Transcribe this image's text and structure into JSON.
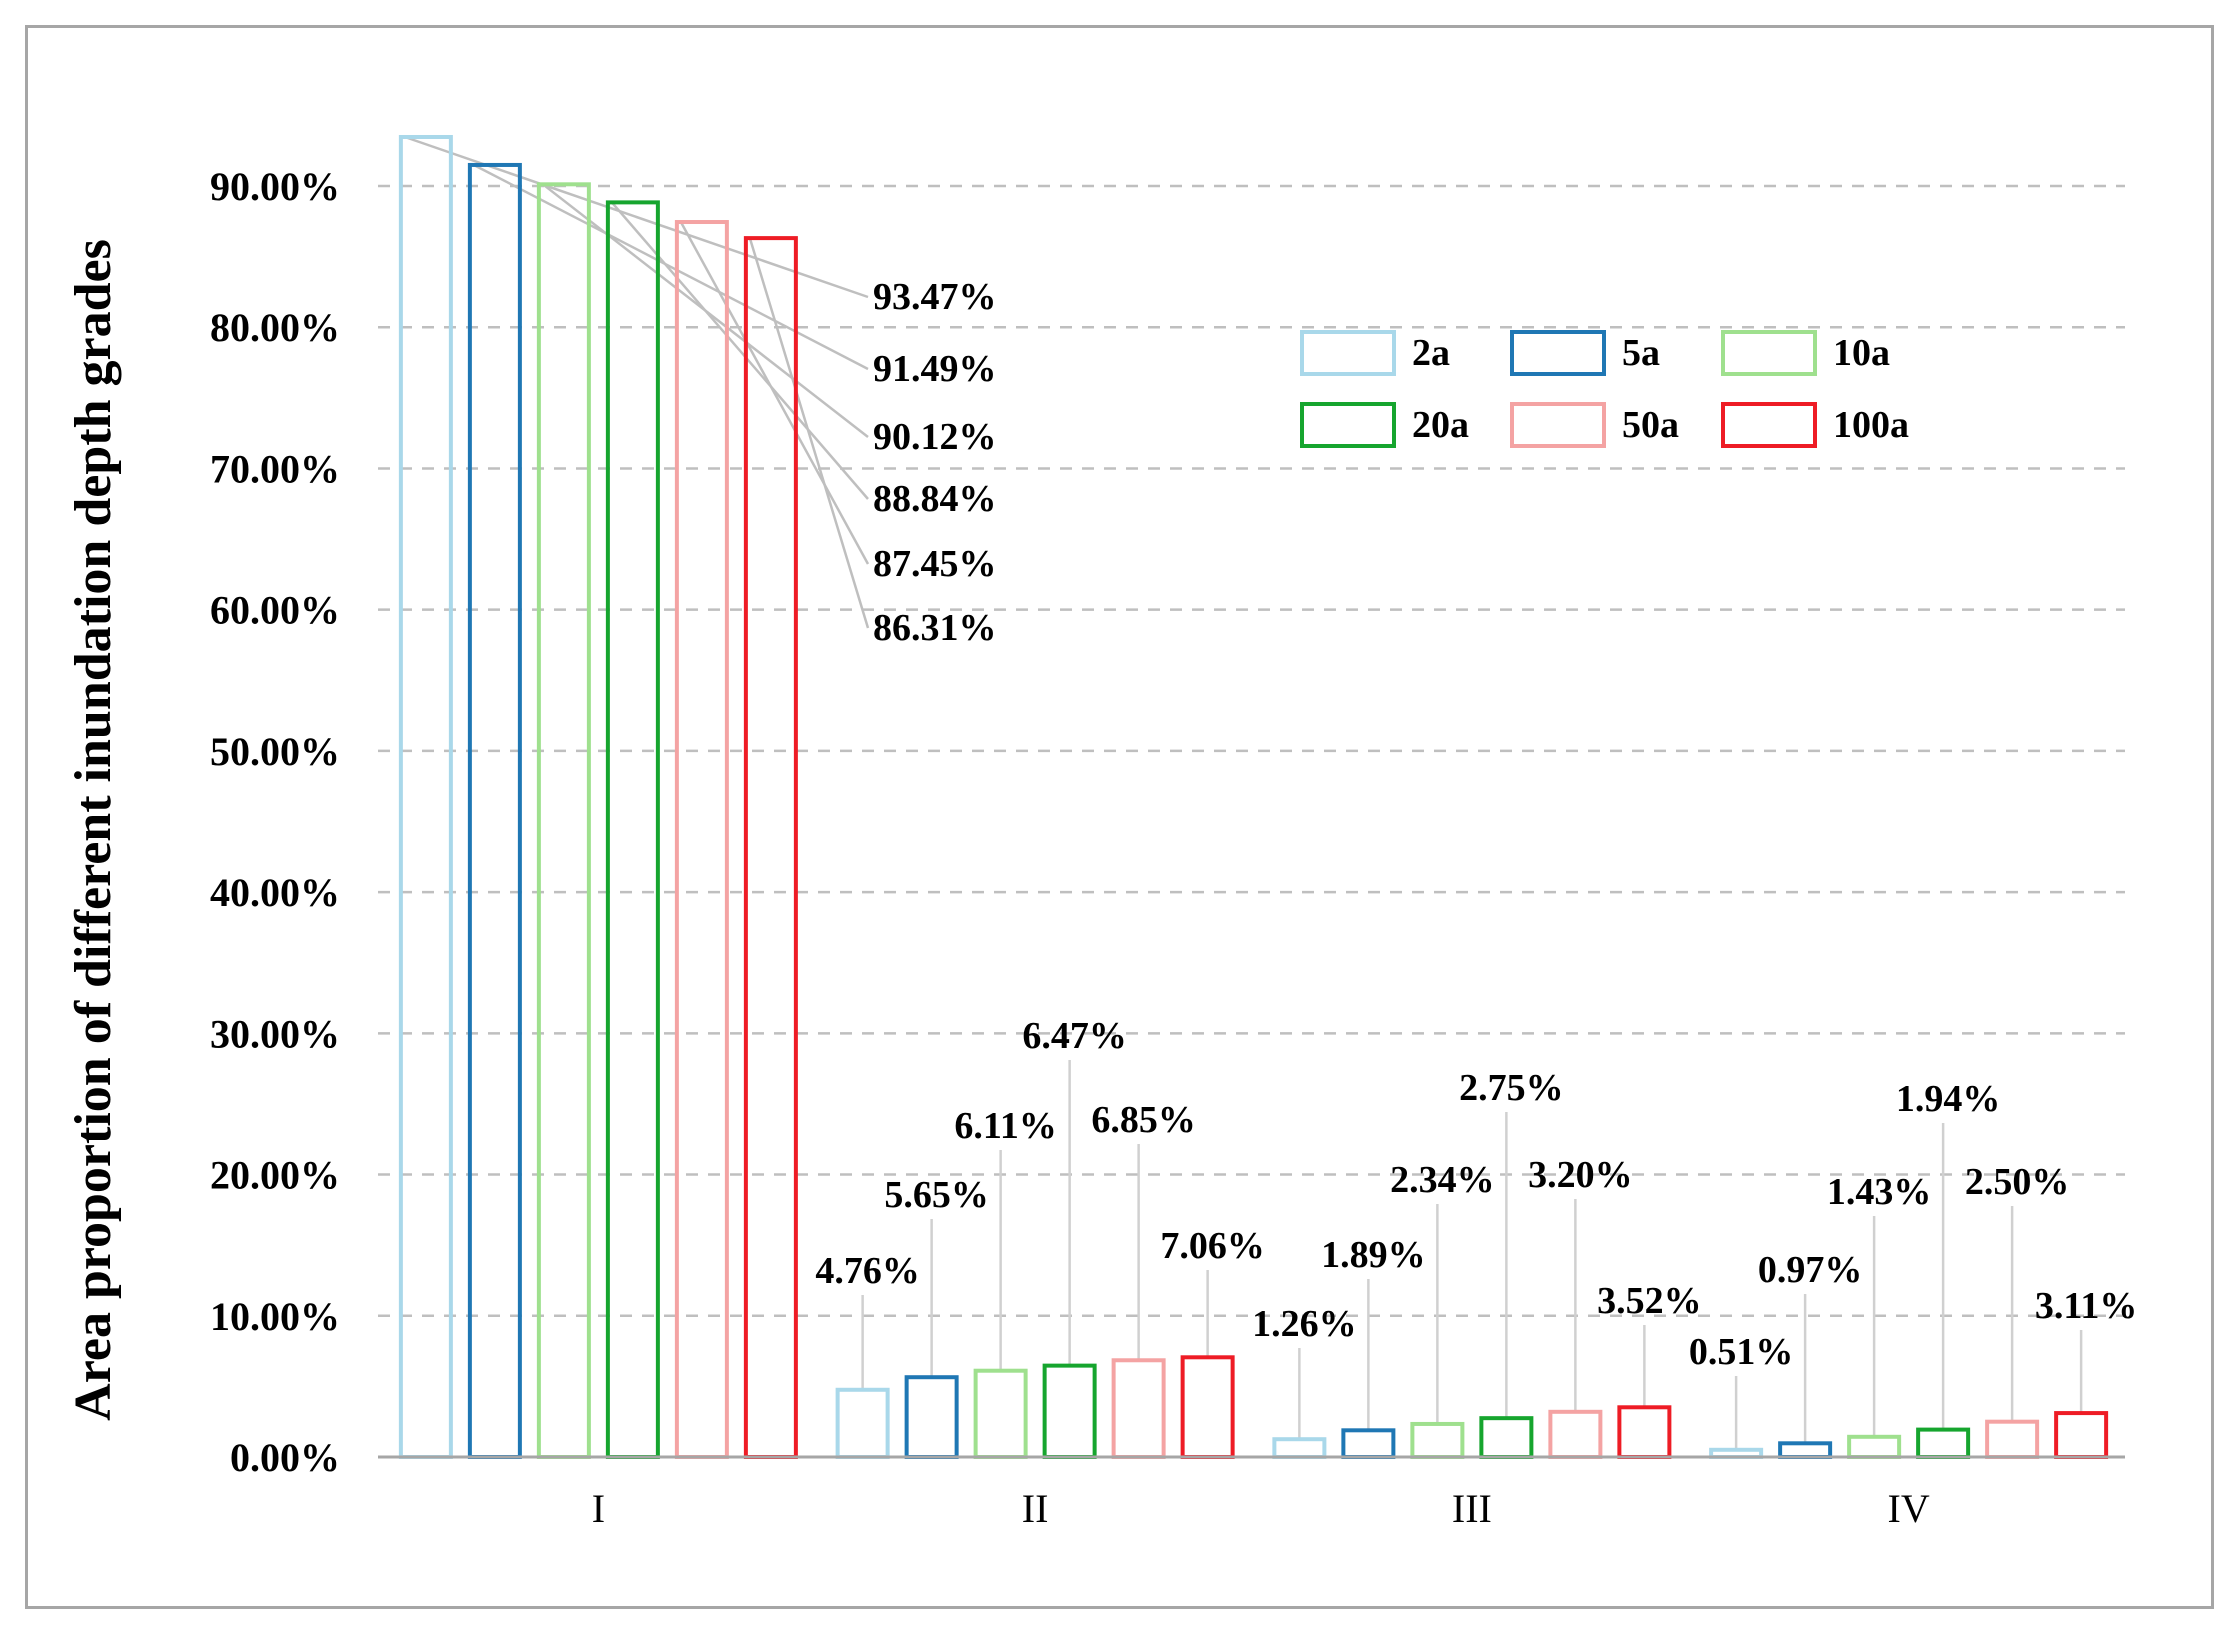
{
  "chart_data": {
    "type": "bar",
    "title": "",
    "xlabel": "",
    "ylabel": "Area proportion of different inundation depth grades",
    "categories": [
      "I",
      "II",
      "III",
      "IV"
    ],
    "ylim": [
      0,
      0.95
    ],
    "yticks": [
      {
        "value": 0.0,
        "label": "0.00%"
      },
      {
        "value": 0.1,
        "label": "10.00%"
      },
      {
        "value": 0.2,
        "label": "20.00%"
      },
      {
        "value": 0.3,
        "label": "30.00%"
      },
      {
        "value": 0.4,
        "label": "40.00%"
      },
      {
        "value": 0.5,
        "label": "50.00%"
      },
      {
        "value": 0.6,
        "label": "60.00%"
      },
      {
        "value": 0.7,
        "label": "70.00%"
      },
      {
        "value": 0.8,
        "label": "80.00%"
      },
      {
        "value": 0.9,
        "label": "90.00%"
      }
    ],
    "grid": true,
    "legend_position": "top-right",
    "series": [
      {
        "name": "2a",
        "color": "#a9d8ea",
        "values": [
          0.9347,
          0.0476,
          0.0126,
          0.0051
        ],
        "labels": [
          "93.47%",
          "4.76%",
          "1.26%",
          "0.51%"
        ]
      },
      {
        "name": "5a",
        "color": "#1f77b4",
        "values": [
          0.9149,
          0.0565,
          0.0189,
          0.0097
        ],
        "labels": [
          "91.49%",
          "5.65%",
          "1.89%",
          "0.97%"
        ]
      },
      {
        "name": "10a",
        "color": "#9fe08e",
        "values": [
          0.9012,
          0.0611,
          0.0234,
          0.0143
        ],
        "labels": [
          "90.12%",
          "6.11%",
          "2.34%",
          "1.43%"
        ]
      },
      {
        "name": "20a",
        "color": "#16a52e",
        "values": [
          0.8884,
          0.0647,
          0.0275,
          0.0194
        ],
        "labels": [
          "88.84%",
          "6.47%",
          "2.75%",
          "1.94%"
        ]
      },
      {
        "name": "50a",
        "color": "#f4a3a3",
        "values": [
          0.8745,
          0.0685,
          0.032,
          0.025
        ],
        "labels": [
          "87.45%",
          "6.85%",
          "3.20%",
          "2.50%"
        ]
      },
      {
        "name": "100a",
        "color": "#ee1c25",
        "values": [
          0.8631,
          0.0706,
          0.0352,
          0.0311
        ],
        "labels": [
          "86.31%",
          "7.06%",
          "3.52%",
          "3.11%"
        ]
      }
    ]
  }
}
